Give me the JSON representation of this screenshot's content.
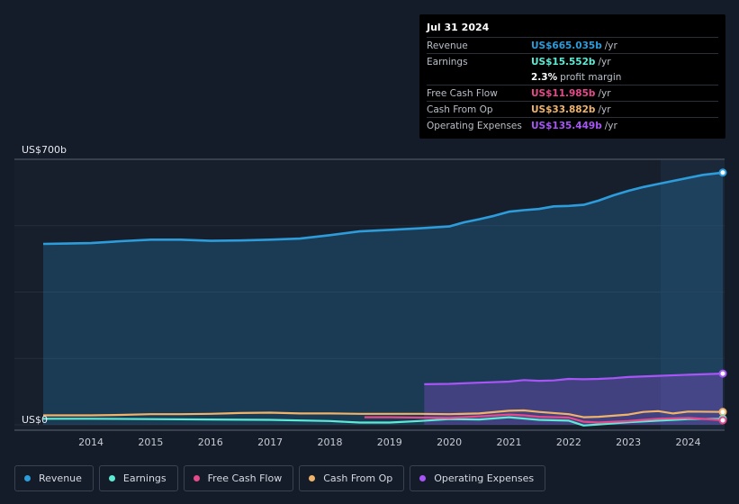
{
  "tooltip": {
    "date": "Jul 31 2024",
    "rows": [
      {
        "label": "Revenue",
        "value": "US$665.035b",
        "unit": "/yr",
        "color": "#2d9cdb"
      },
      {
        "label": "Earnings",
        "value": "US$15.552b",
        "unit": "/yr",
        "color": "#5eead4"
      },
      {
        "label": "",
        "value": "2.3%",
        "unit": "profit margin",
        "color": "#ffffff"
      },
      {
        "label": "Free Cash Flow",
        "value": "US$11.985b",
        "unit": "/yr",
        "color": "#e64a8b"
      },
      {
        "label": "Cash From Op",
        "value": "US$33.882b",
        "unit": "/yr",
        "color": "#f0b36a"
      },
      {
        "label": "Operating Expenses",
        "value": "US$135.449b",
        "unit": "/yr",
        "color": "#a855f7"
      }
    ]
  },
  "legend": [
    {
      "label": "Revenue",
      "color": "#2d9cdb"
    },
    {
      "label": "Earnings",
      "color": "#5eead4"
    },
    {
      "label": "Free Cash Flow",
      "color": "#e64a8b"
    },
    {
      "label": "Cash From Op",
      "color": "#f0b36a"
    },
    {
      "label": "Operating Expenses",
      "color": "#a855f7"
    }
  ],
  "chart_data": {
    "type": "area",
    "y_axis_labels": {
      "top": "US$700b",
      "bottom": "US$0"
    },
    "ylim": [
      0,
      700
    ],
    "xlim": [
      2013.2,
      2024.58
    ],
    "x_ticks": [
      "2014",
      "2015",
      "2016",
      "2017",
      "2018",
      "2019",
      "2020",
      "2021",
      "2022",
      "2023",
      "2024"
    ],
    "series": [
      {
        "name": "Revenue",
        "color": "#2d9cdb",
        "fill": true,
        "x": [
          2013.2,
          2013.6,
          2014.0,
          2014.5,
          2015.0,
          2015.5,
          2016.0,
          2016.5,
          2017.0,
          2017.5,
          2018.0,
          2018.5,
          2019.0,
          2019.5,
          2020.0,
          2020.25,
          2020.5,
          2020.75,
          2021.0,
          2021.25,
          2021.5,
          2021.75,
          2022.0,
          2022.25,
          2022.5,
          2022.75,
          2023.0,
          2023.25,
          2023.5,
          2023.75,
          2024.0,
          2024.25,
          2024.58
        ],
        "values": [
          477,
          478,
          479,
          484,
          488,
          488,
          485,
          486,
          488,
          491,
          500,
          510,
          514,
          518,
          523,
          534,
          542,
          551,
          562,
          566,
          569,
          576,
          577,
          580,
          591,
          605,
          617,
          627,
          635,
          643,
          651,
          659,
          665
        ]
      },
      {
        "name": "Operating Expenses",
        "color": "#a855f7",
        "fill": true,
        "x": [
          2019.58,
          2020.0,
          2020.5,
          2021.0,
          2021.25,
          2021.5,
          2021.75,
          2022.0,
          2022.25,
          2022.5,
          2022.75,
          2023.0,
          2023.5,
          2024.0,
          2024.58
        ],
        "values": [
          107,
          108,
          111,
          114,
          118,
          116,
          117,
          121,
          120,
          121,
          123,
          126,
          129,
          132,
          135
        ]
      },
      {
        "name": "Cash From Op",
        "color": "#f0b36a",
        "fill": false,
        "x": [
          2013.2,
          2014.0,
          2014.5,
          2015.0,
          2015.5,
          2016.0,
          2016.5,
          2017.0,
          2017.5,
          2018.0,
          2018.5,
          2019.0,
          2019.5,
          2020.0,
          2020.5,
          2021.0,
          2021.25,
          2021.5,
          2022.0,
          2022.25,
          2022.5,
          2023.0,
          2023.25,
          2023.5,
          2023.75,
          2024.0,
          2024.58
        ],
        "values": [
          25,
          25,
          26,
          28,
          28,
          29,
          31,
          32,
          30,
          30,
          29,
          29,
          29,
          28,
          30,
          37,
          38,
          34,
          28,
          20,
          21,
          27,
          34,
          36,
          30,
          35,
          34
        ]
      },
      {
        "name": "Earnings",
        "color": "#5eead4",
        "fill": false,
        "x": [
          2013.2,
          2014.0,
          2015.0,
          2016.0,
          2017.0,
          2018.0,
          2018.5,
          2019.0,
          2019.5,
          2020.0,
          2020.5,
          2021.0,
          2021.5,
          2022.0,
          2022.25,
          2022.5,
          2023.0,
          2023.5,
          2024.0,
          2024.58
        ],
        "values": [
          16,
          16,
          15,
          14,
          13,
          10,
          6,
          6,
          10,
          15,
          14,
          20,
          13,
          11,
          -2,
          1,
          7,
          11,
          15,
          16
        ]
      },
      {
        "name": "Free Cash Flow",
        "color": "#e64a8b",
        "fill": false,
        "x": [
          2018.58,
          2019.0,
          2019.5,
          2020.0,
          2020.5,
          2021.0,
          2021.25,
          2021.5,
          2022.0,
          2022.25,
          2022.5,
          2023.0,
          2023.25,
          2023.5,
          2024.0,
          2024.58
        ],
        "values": [
          20,
          20,
          19,
          18,
          22,
          27,
          25,
          21,
          19,
          8,
          6,
          10,
          13,
          16,
          18,
          12
        ]
      }
    ]
  }
}
